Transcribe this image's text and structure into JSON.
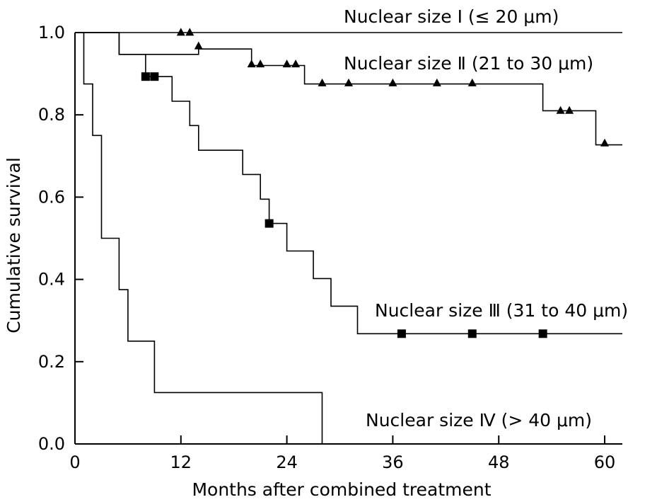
{
  "chart_data": {
    "type": "line",
    "subtype": "kaplan-meier step",
    "xlabel": "Months after combined treatment",
    "ylabel": "Cumulative survival",
    "xlim": [
      0,
      62
    ],
    "ylim": [
      0,
      1.0
    ],
    "xticks": [
      0,
      12,
      24,
      36,
      48,
      60
    ],
    "yticks": [
      0.0,
      0.2,
      0.4,
      0.6,
      0.8,
      1.0
    ],
    "xtick_labels": [
      "0",
      "12",
      "24",
      "36",
      "48",
      "60"
    ],
    "ytick_labels": [
      "0.0",
      "0.2",
      "0.4",
      "0.6",
      "0.8",
      "1.0"
    ],
    "grid": false,
    "series": [
      {
        "name": "Nuclear size Ⅰ (≤ 20 μm)",
        "marker": "none",
        "steps": [
          [
            0,
            1.0
          ],
          [
            62,
            1.0
          ]
        ],
        "censored": []
      },
      {
        "name": "Nuclear size Ⅱ (21 to 30 μm)",
        "marker": "triangle",
        "steps": [
          [
            0,
            1.0
          ],
          [
            5,
            1.0
          ],
          [
            5,
            0.947
          ],
          [
            14,
            0.947
          ],
          [
            14,
            0.96
          ],
          [
            20,
            0.96
          ],
          [
            20,
            0.92
          ],
          [
            25,
            0.92
          ],
          [
            25,
            0.92
          ],
          [
            26,
            0.92
          ],
          [
            26,
            0.875
          ],
          [
            53,
            0.875
          ],
          [
            53,
            0.81
          ],
          [
            59,
            0.81
          ],
          [
            59,
            0.727
          ],
          [
            62,
            0.727
          ]
        ],
        "censored": [
          [
            12,
            1.0
          ],
          [
            13,
            1.0
          ],
          [
            14,
            0.967
          ],
          [
            20,
            0.923
          ],
          [
            21,
            0.923
          ],
          [
            24,
            0.923
          ],
          [
            25,
            0.923
          ],
          [
            28,
            0.877
          ],
          [
            31,
            0.877
          ],
          [
            36,
            0.877
          ],
          [
            41,
            0.877
          ],
          [
            45,
            0.877
          ],
          [
            55,
            0.81
          ],
          [
            56,
            0.81
          ],
          [
            60,
            0.731
          ]
        ]
      },
      {
        "name": "Nuclear size Ⅲ (31 to 40 μm)",
        "marker": "square",
        "steps": [
          [
            0,
            1.0
          ],
          [
            5,
            1.0
          ],
          [
            5,
            0.947
          ],
          [
            8,
            0.947
          ],
          [
            8,
            0.893
          ],
          [
            11,
            0.893
          ],
          [
            11,
            0.833
          ],
          [
            13,
            0.833
          ],
          [
            13,
            0.774
          ],
          [
            14,
            0.774
          ],
          [
            14,
            0.714
          ],
          [
            19,
            0.714
          ],
          [
            19,
            0.655
          ],
          [
            21,
            0.655
          ],
          [
            21,
            0.595
          ],
          [
            22,
            0.595
          ],
          [
            22,
            0.536
          ],
          [
            24,
            0.536
          ],
          [
            24,
            0.469
          ],
          [
            27,
            0.469
          ],
          [
            27,
            0.402
          ],
          [
            29,
            0.402
          ],
          [
            29,
            0.335
          ],
          [
            32,
            0.335
          ],
          [
            32,
            0.268
          ],
          [
            62,
            0.268
          ]
        ],
        "censored": [
          [
            8,
            0.893
          ],
          [
            9,
            0.893
          ],
          [
            22,
            0.536
          ],
          [
            37,
            0.268
          ],
          [
            45,
            0.268
          ],
          [
            53,
            0.268
          ]
        ]
      },
      {
        "name": "Nuclear size Ⅳ (> 40 μm)",
        "marker": "none",
        "steps": [
          [
            0,
            1.0
          ],
          [
            1,
            1.0
          ],
          [
            1,
            0.875
          ],
          [
            2,
            0.875
          ],
          [
            2,
            0.75
          ],
          [
            3,
            0.75
          ],
          [
            3,
            0.5
          ],
          [
            5,
            0.5
          ],
          [
            5,
            0.375
          ],
          [
            6,
            0.375
          ],
          [
            6,
            0.25
          ],
          [
            9,
            0.25
          ],
          [
            9,
            0.125
          ],
          [
            28,
            0.125
          ],
          [
            28,
            0.0
          ]
        ],
        "censored": []
      }
    ]
  }
}
